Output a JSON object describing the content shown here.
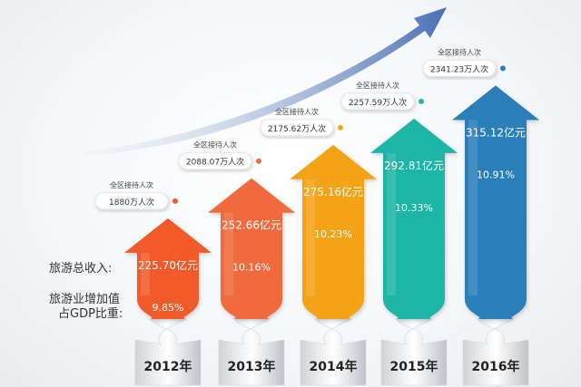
{
  "labels": {
    "income_row": "旅游总收入:",
    "gdp_row_line1": "旅游业增加值",
    "gdp_row_line2": "占GDP比重:",
    "visitors_caption": "全区接待人次"
  },
  "chart_data": {
    "type": "bar",
    "categories": [
      "2012年",
      "2013年",
      "2014年",
      "2015年",
      "2016年"
    ],
    "series": [
      {
        "values": [
          225.7,
          252.66,
          275.16,
          292.81,
          315.12
        ],
        "labels": [
          "225.70亿元",
          "252.66亿元",
          "275.16亿元",
          "292.81亿元",
          "315.12亿元"
        ]
      },
      {
        "values": [
          9.85,
          10.16,
          10.23,
          10.33,
          10.91
        ],
        "labels": [
          "9.85%",
          "10.16%",
          "10.23%",
          "10.33%",
          "10.91%"
        ]
      },
      {
        "values": [
          1880,
          2088.07,
          2175.62,
          2257.59,
          2341.23
        ],
        "labels": [
          "1880万人次",
          "2088.07万人次",
          "2175.62万人次",
          "2257.59万人次",
          "2341.23万人次"
        ]
      }
    ],
    "colors": [
      "#f25a2c",
      "#f06a3c",
      "#f5a319",
      "#1fb5a6",
      "#2a7fb8"
    ],
    "legend": "none",
    "grid": false
  }
}
